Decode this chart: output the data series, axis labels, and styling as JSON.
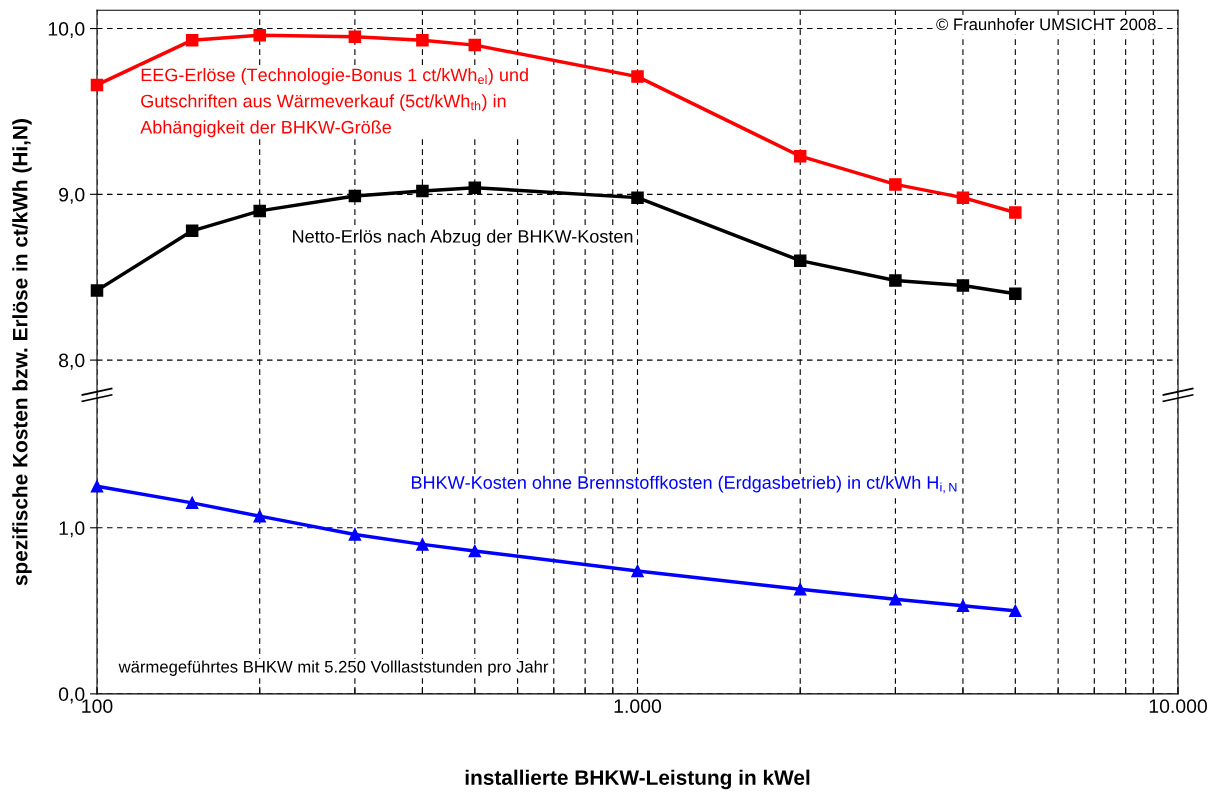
{
  "chart_data": [
    {
      "type": "line",
      "ylabel": "spezifische Kosten bzw. Erlöse in ct/kWh (Hi,N)",
      "x": [
        100,
        150,
        200,
        300,
        400,
        500,
        1000,
        2000,
        3000,
        4000,
        5000
      ],
      "series": [
        {
          "name": "EEG-Erlöse (Technologie-Bonus 1 ct/kWh$_{el}$) und\nGutschriften aus Wärmeverkauf (5ct/kWh$_{th}$) in\nAbhängigkeit der BHKW-Größe",
          "color": "#ff0000",
          "values": [
            9.66,
            9.93,
            9.96,
            9.95,
            9.93,
            9.9,
            9.71,
            9.23,
            9.06,
            8.98,
            8.89
          ]
        },
        {
          "name": "Netto-Erlös nach Abzug der BHKW-Kosten",
          "color": "#000000",
          "values": [
            8.42,
            8.78,
            8.9,
            8.99,
            9.02,
            9.04,
            8.98,
            8.6,
            8.48,
            8.45,
            8.4
          ]
        }
      ],
      "marker": "square",
      "log": "x",
      "xlim": [
        100,
        10000
      ],
      "xticks": [
        {
          "value": 100,
          "label": null
        },
        {
          "value": 200,
          "label": null
        },
        {
          "value": 300,
          "label": null
        },
        {
          "value": 400,
          "label": null
        },
        {
          "value": 500,
          "label": null
        },
        {
          "value": 600,
          "label": null
        },
        {
          "value": 700,
          "label": null
        },
        {
          "value": 800,
          "label": null
        },
        {
          "value": 900,
          "label": null
        },
        {
          "value": 1000,
          "label": null
        },
        {
          "value": 2000,
          "label": null
        },
        {
          "value": 3000,
          "label": null
        },
        {
          "value": 4000,
          "label": null
        },
        {
          "value": 5000,
          "label": null
        },
        {
          "value": 6000,
          "label": null
        },
        {
          "value": 7000,
          "label": null
        },
        {
          "value": 8000,
          "label": null
        },
        {
          "value": 9000,
          "label": null
        },
        {
          "value": 10000,
          "label": null
        }
      ],
      "ylim": [
        7.79,
        10.11
      ],
      "yticks": [
        {
          "value": 8,
          "label": "8,0"
        },
        {
          "value": 9,
          "label": "9,0"
        },
        {
          "value": 10,
          "label": "10,0"
        }
      ],
      "grid": true,
      "tick_labels": "y",
      "annotations": [
        "© Fraunhofer UMSICHT 2008"
      ]
    },
    {
      "type": "line",
      "xlabel": "installierte BHKW-Leistung in kWel",
      "x": [
        100,
        150,
        200,
        300,
        400,
        500,
        1000,
        2000,
        3000,
        4000,
        5000
      ],
      "series": [
        {
          "name": "BHKW-Kosten ohne Brennstoffkosten (Erdgasbetrieb) in ct/kWh H$_{i,N}$",
          "color": "#0000ff",
          "values": [
            1.25,
            1.15,
            1.07,
            0.96,
            0.9,
            0.86,
            0.74,
            0.63,
            0.57,
            0.53,
            0.5
          ]
        }
      ],
      "marker": "triangle",
      "log": "x",
      "xlim": [
        100,
        10000
      ],
      "xticks": [
        100,
        {
          "value": 200,
          "label": null
        },
        {
          "value": 300,
          "label": null
        },
        {
          "value": 400,
          "label": null
        },
        {
          "value": 500,
          "label": null
        },
        {
          "value": 600,
          "label": null
        },
        {
          "value": 700,
          "label": null
        },
        {
          "value": 800,
          "label": null
        },
        {
          "value": 900,
          "label": null
        },
        {
          "value": 1000,
          "label": "1.000"
        },
        {
          "value": 2000,
          "label": null
        },
        {
          "value": 3000,
          "label": null
        },
        {
          "value": 4000,
          "label": null
        },
        {
          "value": 5000,
          "label": null
        },
        {
          "value": 6000,
          "label": null
        },
        {
          "value": 7000,
          "label": null
        },
        {
          "value": 8000,
          "label": null
        },
        {
          "value": 9000,
          "label": null
        },
        {
          "value": 10000,
          "label": "10.000"
        }
      ],
      "ylim": [
        0,
        1.8
      ],
      "yticks": [
        {
          "value": 0,
          "label": "0,0"
        },
        {
          "value": 1,
          "label": "1,0"
        }
      ],
      "grid": true,
      "annotations": [
        "wärmegeführtes BHKW mit 5.250 Volllaststunden pro Jahr"
      ]
    }
  ]
}
